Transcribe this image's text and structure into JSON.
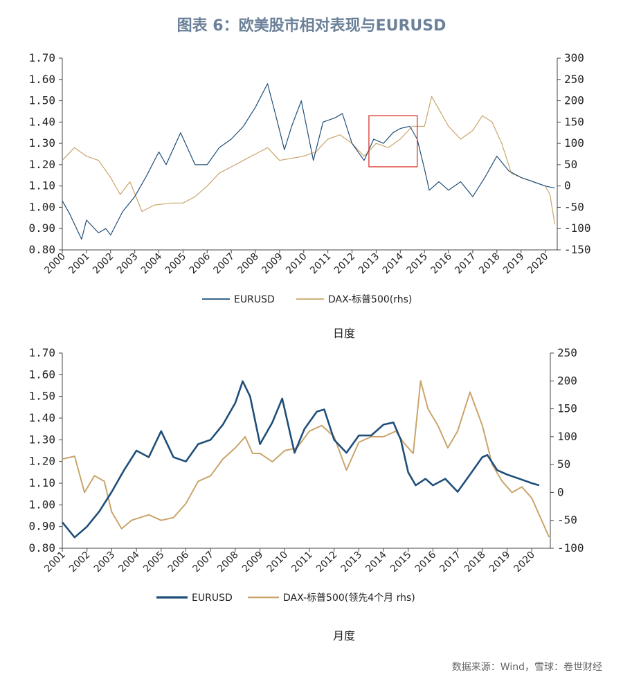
{
  "title": "图表 6：欧美股市相对表现与EURUSD",
  "source": "数据来源：Wind，雪球：卷世财经",
  "colors": {
    "eurusd": "#1f4e79",
    "dax": "#c9a46a",
    "highlight": "#d9342b",
    "axis": "#444444"
  },
  "chart_data": [
    {
      "type": "line",
      "name": "daily",
      "caption": "日度",
      "x_ticks": [
        "2000",
        "2001",
        "2002",
        "2003",
        "2004",
        "2005",
        "2006",
        "2007",
        "2008",
        "2009",
        "2010",
        "2011",
        "2012",
        "2013",
        "2014",
        "2015",
        "2016",
        "2017",
        "2018",
        "2019",
        "2020"
      ],
      "x_range": [
        2000,
        2020.5
      ],
      "left_ticks": [
        "1.70",
        "1.60",
        "1.50",
        "1.40",
        "1.30",
        "1.20",
        "1.10",
        "1.00",
        "0.90",
        "0.80"
      ],
      "right_ticks": [
        "300",
        "250",
        "200",
        "150",
        "100",
        "50",
        "0",
        "-50",
        "-100",
        "-150"
      ],
      "ylim_left": [
        0.8,
        1.7
      ],
      "ylim_right": [
        -150,
        300
      ],
      "highlight_box": {
        "x_range": [
          2012.7,
          2014.7
        ],
        "y_range": [
          1.19,
          1.43
        ]
      },
      "series": [
        {
          "name": "EURUSD",
          "axis": "left",
          "color_key": "eurusd",
          "x": [
            2000,
            2000.3,
            2000.8,
            2001.0,
            2001.5,
            2001.8,
            2002.0,
            2002.5,
            2003.0,
            2003.5,
            2004.0,
            2004.3,
            2004.9,
            2005.5,
            2006.0,
            2006.5,
            2007.0,
            2007.5,
            2008.0,
            2008.5,
            2008.8,
            2009.2,
            2009.5,
            2009.9,
            2010.4,
            2010.8,
            2011.3,
            2011.6,
            2012.0,
            2012.5,
            2012.9,
            2013.3,
            2013.7,
            2014.0,
            2014.4,
            2014.7,
            2015.0,
            2015.2,
            2015.6,
            2016.0,
            2016.5,
            2017.0,
            2017.5,
            2018.0,
            2018.5,
            2019.0,
            2019.5,
            2020.0,
            2020.4
          ],
          "values": [
            1.03,
            0.97,
            0.85,
            0.94,
            0.88,
            0.9,
            0.87,
            0.98,
            1.05,
            1.15,
            1.26,
            1.2,
            1.35,
            1.2,
            1.2,
            1.28,
            1.32,
            1.38,
            1.47,
            1.58,
            1.45,
            1.27,
            1.38,
            1.5,
            1.22,
            1.4,
            1.42,
            1.44,
            1.3,
            1.22,
            1.32,
            1.3,
            1.35,
            1.37,
            1.38,
            1.32,
            1.18,
            1.08,
            1.12,
            1.08,
            1.12,
            1.05,
            1.14,
            1.24,
            1.17,
            1.14,
            1.12,
            1.1,
            1.09
          ]
        },
        {
          "name": "DAX-标普500(rhs)",
          "axis": "right",
          "color_key": "dax",
          "x": [
            2000,
            2000.5,
            2001.0,
            2001.5,
            2002.0,
            2002.4,
            2002.8,
            2003.3,
            2003.8,
            2004.5,
            2005.0,
            2005.5,
            2006.0,
            2006.5,
            2007.0,
            2007.5,
            2008.0,
            2008.5,
            2009.0,
            2009.5,
            2010.0,
            2010.5,
            2011.0,
            2011.5,
            2012.0,
            2012.5,
            2013.0,
            2013.5,
            2014.0,
            2014.5,
            2015.0,
            2015.3,
            2015.6,
            2016.0,
            2016.5,
            2017.0,
            2017.4,
            2017.8,
            2018.2,
            2018.6,
            2019.0,
            2019.5,
            2020.0,
            2020.2,
            2020.4
          ],
          "values": [
            60,
            90,
            70,
            60,
            20,
            -20,
            10,
            -60,
            -45,
            -40,
            -40,
            -25,
            0,
            30,
            45,
            60,
            75,
            90,
            60,
            65,
            70,
            80,
            110,
            120,
            100,
            70,
            100,
            90,
            110,
            140,
            140,
            210,
            180,
            140,
            110,
            130,
            165,
            150,
            100,
            30,
            20,
            10,
            0,
            -20,
            -90
          ]
        }
      ]
    },
    {
      "type": "line",
      "name": "monthly",
      "caption": "月度",
      "x_ticks": [
        "2001",
        "2002",
        "2003",
        "2004",
        "2005",
        "2006",
        "2007",
        "2008",
        "2009",
        "2010",
        "2011",
        "2012",
        "2013",
        "2014",
        "2015",
        "2016",
        "2017",
        "2018",
        "2019",
        "2020"
      ],
      "x_range": [
        2001,
        2020.75
      ],
      "left_ticks": [
        "1.70",
        "1.60",
        "1.50",
        "1.40",
        "1.30",
        "1.20",
        "1.10",
        "1.00",
        "0.90",
        "0.80"
      ],
      "right_ticks": [
        "250",
        "200",
        "150",
        "100",
        "50",
        "0",
        "-50",
        "-100"
      ],
      "ylim_left": [
        0.8,
        1.7
      ],
      "ylim_right": [
        -100,
        250
      ],
      "series": [
        {
          "name": "EURUSD",
          "axis": "left",
          "color_key": "eurusd",
          "x": [
            2001,
            2001.5,
            2002.0,
            2002.5,
            2003.0,
            2003.5,
            2004.0,
            2004.5,
            2005.0,
            2005.5,
            2006.0,
            2006.5,
            2007.0,
            2007.5,
            2008.0,
            2008.3,
            2008.6,
            2009.0,
            2009.5,
            2009.9,
            2010.4,
            2010.8,
            2011.3,
            2011.6,
            2012.0,
            2012.5,
            2013.0,
            2013.5,
            2014.0,
            2014.4,
            2014.7,
            2015.0,
            2015.3,
            2015.7,
            2016.0,
            2016.5,
            2017.0,
            2017.5,
            2018.0,
            2018.2,
            2018.6,
            2019.0,
            2019.5,
            2020.0,
            2020.3
          ],
          "values": [
            0.92,
            0.85,
            0.9,
            0.97,
            1.06,
            1.16,
            1.25,
            1.22,
            1.34,
            1.22,
            1.2,
            1.28,
            1.3,
            1.37,
            1.47,
            1.57,
            1.5,
            1.28,
            1.38,
            1.49,
            1.24,
            1.35,
            1.43,
            1.44,
            1.3,
            1.24,
            1.32,
            1.32,
            1.37,
            1.38,
            1.3,
            1.15,
            1.09,
            1.12,
            1.09,
            1.12,
            1.06,
            1.14,
            1.22,
            1.23,
            1.16,
            1.14,
            1.12,
            1.1,
            1.09
          ]
        },
        {
          "name": "DAX-标普500(领先4个月 rhs)",
          "axis": "right",
          "color_key": "dax",
          "x": [
            2001,
            2001.5,
            2001.9,
            2002.3,
            2002.7,
            2003.0,
            2003.4,
            2003.8,
            2004.5,
            2005.0,
            2005.5,
            2006.0,
            2006.5,
            2007.0,
            2007.5,
            2008.0,
            2008.4,
            2008.7,
            2009.0,
            2009.5,
            2010.0,
            2010.5,
            2011.0,
            2011.5,
            2012.0,
            2012.5,
            2013.0,
            2013.5,
            2014.0,
            2014.5,
            2014.8,
            2015.2,
            2015.5,
            2015.8,
            2016.2,
            2016.6,
            2017.0,
            2017.5,
            2018.0,
            2018.4,
            2018.8,
            2019.2,
            2019.6,
            2020.0,
            2020.4,
            2020.7
          ],
          "values": [
            60,
            65,
            0,
            30,
            20,
            -35,
            -65,
            -50,
            -40,
            -50,
            -45,
            -20,
            20,
            30,
            60,
            80,
            100,
            70,
            70,
            55,
            75,
            80,
            110,
            120,
            100,
            40,
            90,
            100,
            100,
            110,
            90,
            70,
            200,
            150,
            120,
            80,
            110,
            180,
            120,
            50,
            20,
            0,
            10,
            -10,
            -50,
            -80
          ]
        }
      ]
    }
  ]
}
